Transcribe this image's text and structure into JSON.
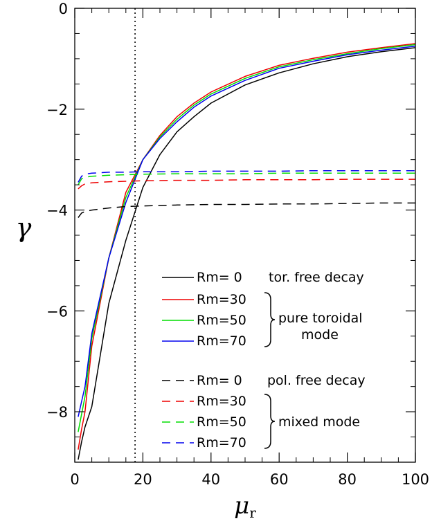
{
  "chart_data": {
    "type": "line",
    "title": "",
    "xlabel": "μ",
    "xlabel_subscript": "r",
    "ylabel": "γ",
    "xlim": [
      0,
      100
    ],
    "ylim": [
      -9,
      0
    ],
    "x_ticks": [
      0,
      20,
      40,
      60,
      80,
      100
    ],
    "y_ticks": [
      0,
      -2,
      -4,
      -6,
      -8
    ],
    "x_tick_labels": [
      "0",
      "20",
      "40",
      "60",
      "80",
      "100"
    ],
    "y_tick_labels": [
      "0",
      "−2",
      "−4",
      "−6",
      "−8"
    ],
    "grid": false,
    "vertical_reference_line": {
      "x": 17.7,
      "style": "dotted"
    },
    "series": [
      {
        "name": "Rm= 0",
        "group": "toroidal",
        "style": "solid",
        "color": "#000000",
        "x": [
          1,
          2,
          3,
          5,
          10,
          15,
          20,
          25,
          30,
          35,
          40,
          50,
          60,
          70,
          80,
          90,
          100
        ],
        "y": [
          -8.95,
          -8.6,
          -8.3,
          -7.9,
          -5.85,
          -4.6,
          -3.55,
          -2.9,
          -2.45,
          -2.15,
          -1.88,
          -1.52,
          -1.28,
          -1.1,
          -0.96,
          -0.86,
          -0.78
        ]
      },
      {
        "name": "Rm=30",
        "group": "toroidal",
        "style": "solid",
        "color": "#ee0000",
        "x": [
          1,
          2,
          3,
          5,
          10,
          15,
          20,
          25,
          30,
          35,
          40,
          50,
          60,
          70,
          80,
          90,
          100
        ],
        "y": [
          -8.75,
          -8.35,
          -8.0,
          -6.7,
          -4.95,
          -3.65,
          -3.0,
          -2.52,
          -2.15,
          -1.88,
          -1.66,
          -1.35,
          -1.13,
          -0.99,
          -0.87,
          -0.78,
          -0.7
        ]
      },
      {
        "name": "Rm=50",
        "group": "toroidal",
        "style": "solid",
        "color": "#00dd00",
        "x": [
          1,
          2,
          3,
          5,
          10,
          15,
          20,
          25,
          30,
          35,
          40,
          50,
          60,
          70,
          80,
          90,
          100
        ],
        "y": [
          -8.4,
          -8.05,
          -7.7,
          -6.55,
          -4.95,
          -3.75,
          -3.0,
          -2.55,
          -2.2,
          -1.92,
          -1.7,
          -1.39,
          -1.16,
          -1.02,
          -0.9,
          -0.8,
          -0.72
        ]
      },
      {
        "name": "Rm=70",
        "group": "toroidal",
        "style": "solid",
        "color": "#0000ee",
        "x": [
          1,
          2,
          3,
          5,
          10,
          15,
          20,
          25,
          30,
          35,
          40,
          50,
          60,
          70,
          80,
          90,
          100
        ],
        "y": [
          -8.1,
          -7.8,
          -7.5,
          -6.45,
          -4.95,
          -3.85,
          -3.0,
          -2.58,
          -2.25,
          -1.96,
          -1.74,
          -1.43,
          -1.19,
          -1.05,
          -0.92,
          -0.83,
          -0.75
        ]
      },
      {
        "name": "Rm= 0",
        "group": "poloidal",
        "style": "dashed",
        "color": "#000000",
        "x": [
          1,
          2,
          3,
          5,
          10,
          15,
          20,
          30,
          40,
          50,
          60,
          70,
          80,
          90,
          100
        ],
        "y": [
          -4.15,
          -4.06,
          -4.03,
          -4.0,
          -3.96,
          -3.93,
          -3.92,
          -3.9,
          -3.89,
          -3.89,
          -3.88,
          -3.88,
          -3.87,
          -3.86,
          -3.86
        ]
      },
      {
        "name": "Rm=30",
        "group": "poloidal",
        "style": "dashed",
        "color": "#ee0000",
        "x": [
          1,
          2,
          3,
          5,
          10,
          15,
          20,
          30,
          40,
          50,
          60,
          70,
          80,
          90,
          100
        ],
        "y": [
          -3.58,
          -3.52,
          -3.48,
          -3.46,
          -3.44,
          -3.43,
          -3.42,
          -3.41,
          -3.41,
          -3.4,
          -3.4,
          -3.4,
          -3.39,
          -3.39,
          -3.39
        ]
      },
      {
        "name": "Rm=50",
        "group": "poloidal",
        "style": "dashed",
        "color": "#00dd00",
        "x": [
          1,
          2,
          3,
          5,
          10,
          15,
          20,
          30,
          40,
          50,
          60,
          70,
          80,
          90,
          100
        ],
        "y": [
          -3.5,
          -3.38,
          -3.35,
          -3.33,
          -3.31,
          -3.3,
          -3.29,
          -3.28,
          -3.28,
          -3.28,
          -3.27,
          -3.27,
          -3.27,
          -3.27,
          -3.27
        ]
      },
      {
        "name": "Rm=70",
        "group": "poloidal",
        "style": "dashed",
        "color": "#0000ee",
        "x": [
          1,
          2,
          3,
          5,
          10,
          15,
          20,
          30,
          40,
          50,
          60,
          70,
          80,
          90,
          100
        ],
        "y": [
          -3.45,
          -3.33,
          -3.29,
          -3.27,
          -3.25,
          -3.25,
          -3.24,
          -3.24,
          -3.23,
          -3.23,
          -3.23,
          -3.22,
          -3.22,
          -3.22,
          -3.22
        ]
      }
    ],
    "legend": {
      "placement": "lower-right",
      "groups": [
        {
          "note": "tor. free decay",
          "brace_note_lines": [
            "pure toroidal",
            "mode"
          ]
        },
        {
          "note": "pol. free decay",
          "brace_note_lines": [
            "mixed mode"
          ]
        }
      ]
    }
  }
}
